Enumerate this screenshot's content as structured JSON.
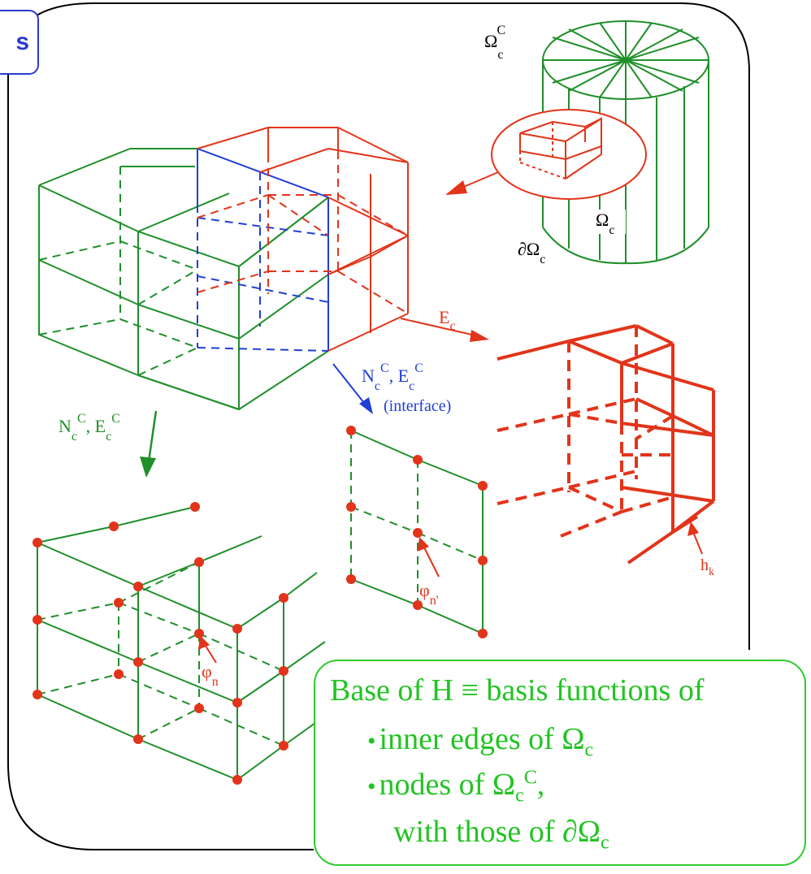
{
  "header_tag": "s",
  "labels": {
    "omega_c_C": {
      "base": "Ω",
      "sub": "c",
      "sup": "C"
    },
    "omega_c": {
      "base": "Ω",
      "sub": "c"
    },
    "boundary_omega_c": {
      "base": "∂Ω",
      "sub": "c"
    },
    "E_c": {
      "base": "E",
      "sub": "c"
    },
    "blue_NE_line1_N": {
      "base": "N",
      "sub": "c",
      "sup": "C"
    },
    "blue_NE_line1_E": {
      "base": ", E",
      "sub": "c",
      "sup": "C"
    },
    "blue_interface": "(interface)",
    "green_NE_N": {
      "base": "N",
      "sub": "c",
      "sup": "C"
    },
    "green_NE_E": {
      "base": ", E",
      "sub": "c",
      "sup": "C"
    },
    "phi_n": {
      "base": "φ",
      "sub": "n"
    },
    "phi_n_prime": {
      "base": "φ",
      "sub": "n'"
    },
    "h_k": {
      "base": "h",
      "sub": "k"
    }
  },
  "callout": {
    "line1": "Base of H ≡ basis functions of",
    "line2_text": "inner edges of Ω",
    "line2_sub": "c",
    "line3_text": "nodes of Ω",
    "line3_sub": "c",
    "line3_sup": "C",
    "line3_tail": ",",
    "line4_text": "with those of ∂Ω",
    "line4_sub": "c",
    "bullet": "•"
  },
  "colors": {
    "green": "#1f8f2a",
    "red": "#e2341a",
    "blue": "#1f3fd6",
    "callout_text": "#22c422",
    "node_fill": "#e2341a"
  }
}
